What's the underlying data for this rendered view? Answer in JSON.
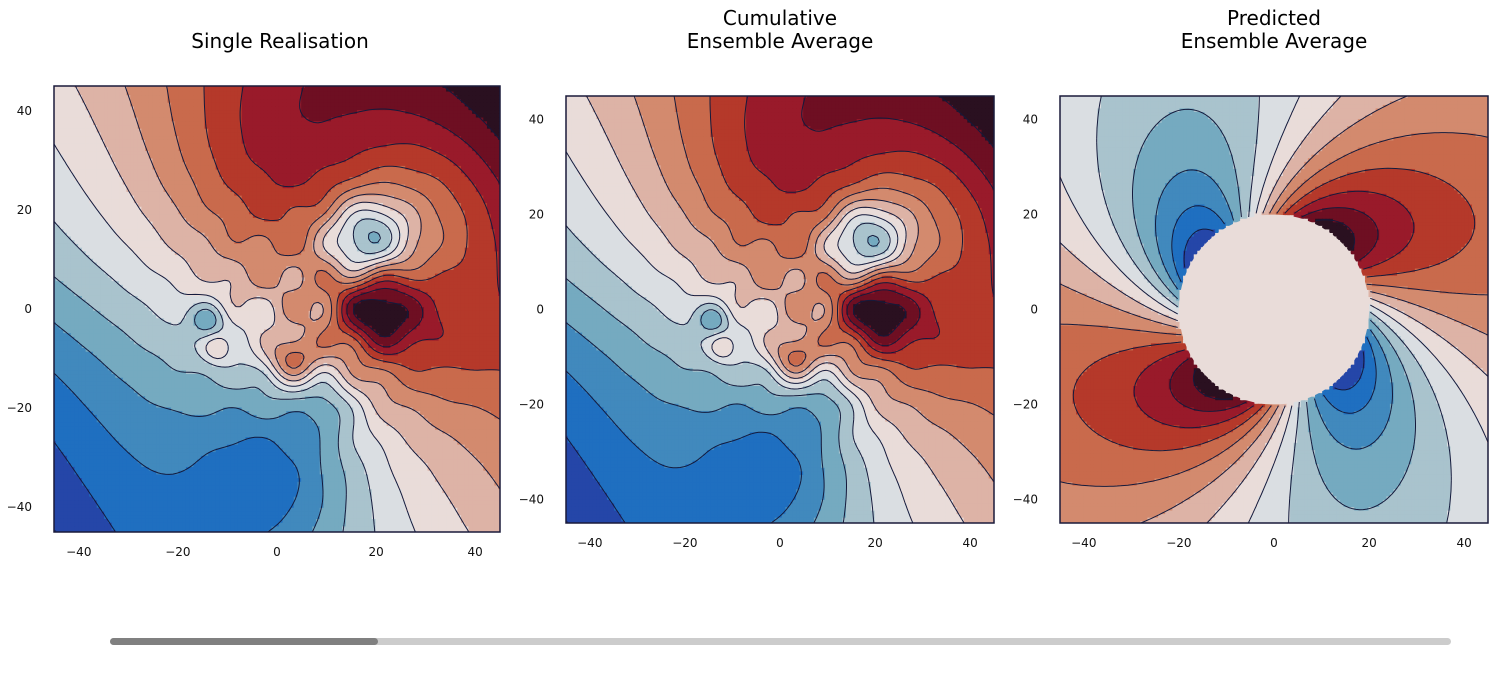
{
  "chart_data": [
    {
      "type": "contour",
      "title": [
        "Single Realisation"
      ],
      "xlim": [
        -45,
        45
      ],
      "ylim": [
        -45,
        45
      ],
      "xticks": [
        -40,
        -20,
        0,
        20,
        40
      ],
      "yticks": [
        -40,
        -20,
        0,
        20,
        40
      ],
      "tick_labels": [
        "−40",
        "−20",
        "0",
        "20",
        "40"
      ],
      "colormap": "diverging red-blue, dark navy contour lines",
      "field": "noisy",
      "grid": false,
      "legend": "none"
    },
    {
      "type": "contour",
      "title": [
        "Cumulative",
        "Ensemble Average"
      ],
      "xlim": [
        -45,
        45
      ],
      "ylim": [
        -45,
        45
      ],
      "xticks": [
        -40,
        -20,
        0,
        20,
        40
      ],
      "yticks": [
        -40,
        -20,
        0,
        20,
        40
      ],
      "tick_labels": [
        "−40",
        "−20",
        "0",
        "20",
        "40"
      ],
      "colormap": "diverging red-blue, dark navy contour lines",
      "field": "noisy",
      "grid": false,
      "legend": "none"
    },
    {
      "type": "contour",
      "title": [
        "Predicted",
        "Ensemble Average"
      ],
      "xlim": [
        -45,
        45
      ],
      "ylim": [
        -45,
        45
      ],
      "xticks": [
        -40,
        -20,
        0,
        20,
        40
      ],
      "yticks": [
        -40,
        -20,
        0,
        20,
        40
      ],
      "tick_labels": [
        "−40",
        "−20",
        "0",
        "20",
        "40"
      ],
      "colormap": "diverging red-blue, dark navy contour lines",
      "field": "predicted",
      "masked_disk_radius": 20,
      "grid": false,
      "legend": "none"
    }
  ],
  "slider": {
    "value": 0.2
  },
  "colors": {
    "reds": [
      "#2a1020",
      "#6e0f22",
      "#991a2a",
      "#b5392a",
      "#c96a4c",
      "#d38a6e",
      "#ddb3a6",
      "#e9dcd9"
    ],
    "blues": [
      "#dadee2",
      "#a9c3cd",
      "#75aac0",
      "#4189bd",
      "#1f6fc0",
      "#2546a8",
      "#1b2a6b"
    ],
    "line": "#141a3c",
    "frame": "#1a1a3a"
  }
}
